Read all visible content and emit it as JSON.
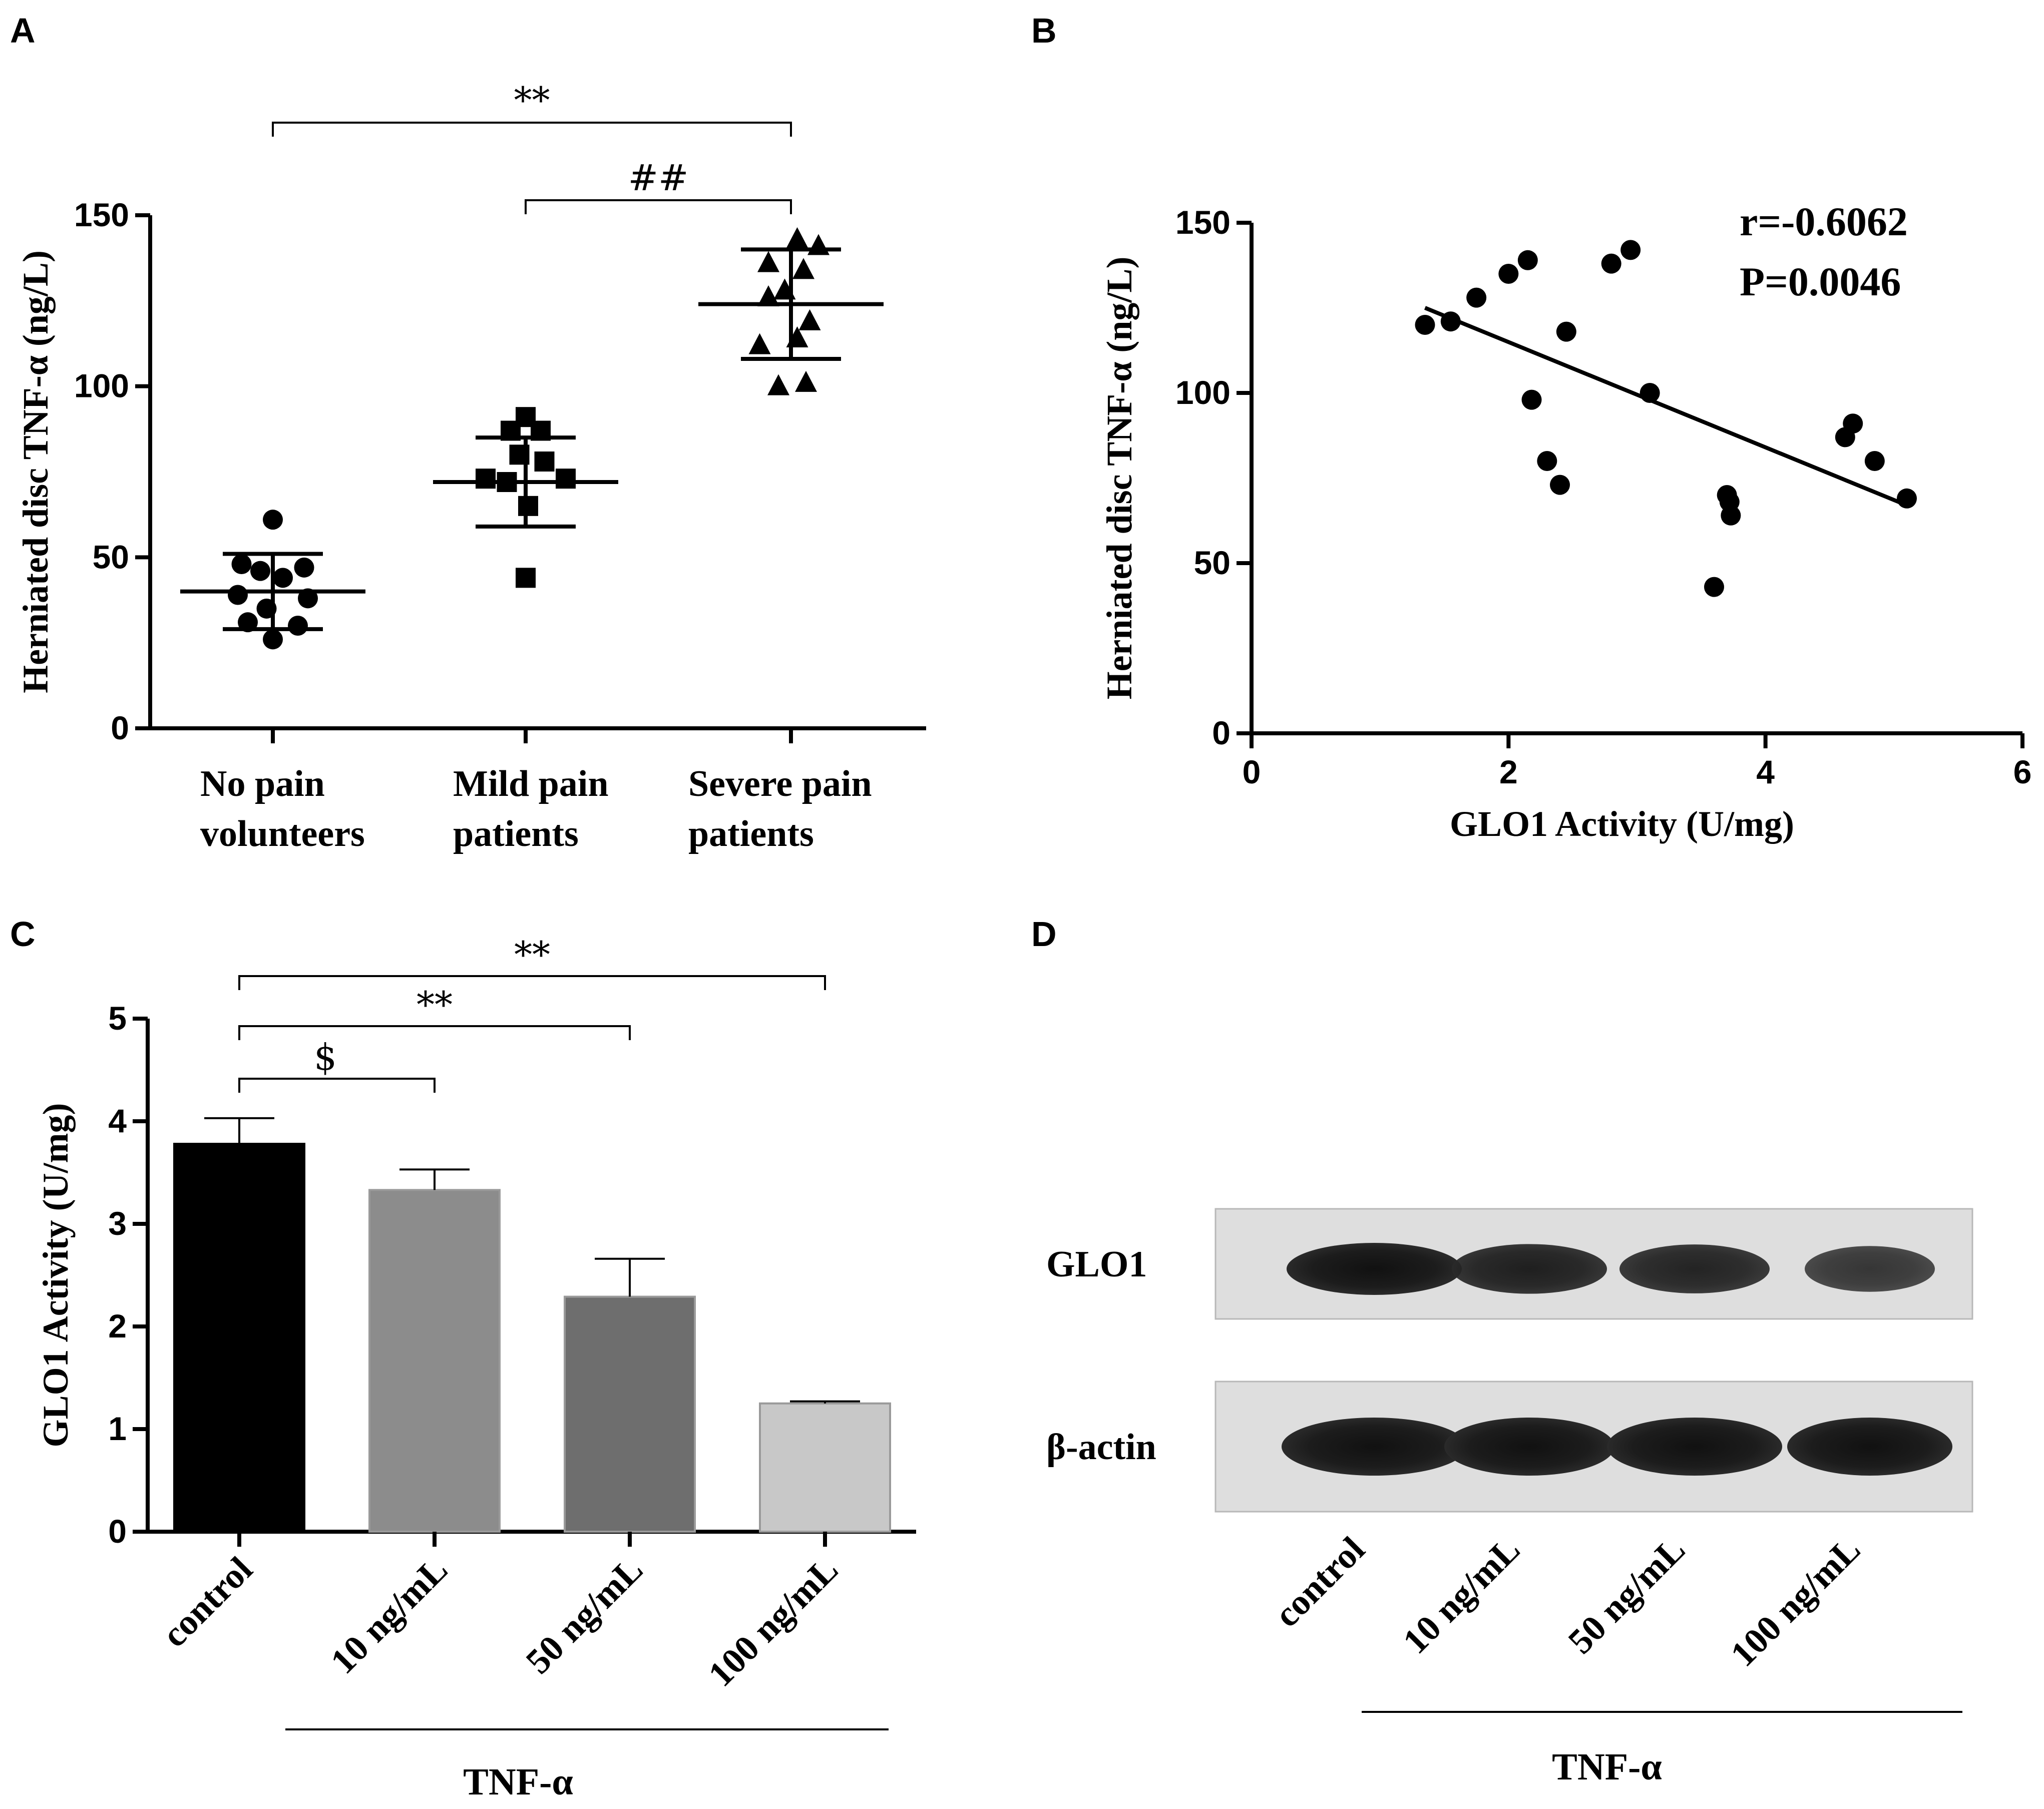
{
  "panels": {
    "A": "A",
    "B": "B",
    "C": "C",
    "D": "D"
  },
  "chart_data": [
    {
      "panel": "A",
      "type": "scatter",
      "ylabel": "Herniated disc TNF-α (ng/L)",
      "ylim": [
        0,
        150
      ],
      "yticks": [
        0,
        50,
        100,
        150
      ],
      "categories": [
        [
          "No pain",
          "volunteers"
        ],
        [
          "Mild pain",
          "patients"
        ],
        [
          "Severe pain",
          "patients"
        ]
      ],
      "groups": [
        {
          "marker": "circle",
          "mean": 40,
          "sd": 11,
          "points": [
            {
              "dx": 0.0,
              "y": 61
            },
            {
              "dx": -0.25,
              "y": 48
            },
            {
              "dx": 0.25,
              "y": 47
            },
            {
              "dx": -0.1,
              "y": 46
            },
            {
              "dx": 0.08,
              "y": 44
            },
            {
              "dx": -0.28,
              "y": 39
            },
            {
              "dx": 0.28,
              "y": 38
            },
            {
              "dx": -0.05,
              "y": 35
            },
            {
              "dx": -0.2,
              "y": 31
            },
            {
              "dx": 0.2,
              "y": 30
            },
            {
              "dx": 0.0,
              "y": 26
            }
          ]
        },
        {
          "marker": "square",
          "mean": 72,
          "sd": 13,
          "points": [
            {
              "dx": 0.0,
              "y": 91
            },
            {
              "dx": -0.12,
              "y": 87
            },
            {
              "dx": 0.12,
              "y": 87
            },
            {
              "dx": -0.05,
              "y": 80
            },
            {
              "dx": 0.15,
              "y": 78
            },
            {
              "dx": -0.32,
              "y": 73
            },
            {
              "dx": 0.32,
              "y": 73
            },
            {
              "dx": -0.15,
              "y": 72
            },
            {
              "dx": 0.02,
              "y": 65
            },
            {
              "dx": 0.0,
              "y": 44
            }
          ]
        },
        {
          "marker": "triangle",
          "mean": 124,
          "sd": 16,
          "points": [
            {
              "dx": 0.05,
              "y": 143
            },
            {
              "dx": 0.22,
              "y": 141
            },
            {
              "dx": -0.18,
              "y": 136
            },
            {
              "dx": 0.1,
              "y": 134
            },
            {
              "dx": -0.05,
              "y": 128
            },
            {
              "dx": -0.18,
              "y": 126
            },
            {
              "dx": 0.15,
              "y": 119
            },
            {
              "dx": -0.25,
              "y": 112
            },
            {
              "dx": 0.05,
              "y": 114
            },
            {
              "dx": -0.1,
              "y": 100
            },
            {
              "dx": 0.12,
              "y": 101
            }
          ]
        }
      ],
      "brackets": [
        {
          "from": 0,
          "to": 2,
          "label": "**"
        },
        {
          "from": 1,
          "to": 2,
          "label": "##"
        }
      ]
    },
    {
      "panel": "B",
      "type": "scatter",
      "xlabel": "GLO1 Activity (U/mg)",
      "ylabel": "Herniated disc TNF-α (ng/L)",
      "xlim": [
        0,
        6
      ],
      "ylim": [
        0,
        150
      ],
      "xticks": [
        0,
        2,
        4,
        6
      ],
      "yticks": [
        0,
        50,
        100,
        150
      ],
      "points": [
        {
          "x": 1.35,
          "y": 120
        },
        {
          "x": 1.55,
          "y": 121
        },
        {
          "x": 1.75,
          "y": 128
        },
        {
          "x": 2.0,
          "y": 135
        },
        {
          "x": 2.15,
          "y": 139
        },
        {
          "x": 2.18,
          "y": 98
        },
        {
          "x": 2.3,
          "y": 80
        },
        {
          "x": 2.4,
          "y": 73
        },
        {
          "x": 2.45,
          "y": 118
        },
        {
          "x": 2.8,
          "y": 138
        },
        {
          "x": 2.95,
          "y": 142
        },
        {
          "x": 3.1,
          "y": 100
        },
        {
          "x": 3.6,
          "y": 43
        },
        {
          "x": 3.7,
          "y": 70
        },
        {
          "x": 3.72,
          "y": 68
        },
        {
          "x": 3.73,
          "y": 64
        },
        {
          "x": 4.62,
          "y": 87
        },
        {
          "x": 4.68,
          "y": 91
        },
        {
          "x": 4.85,
          "y": 80
        },
        {
          "x": 5.1,
          "y": 69
        }
      ],
      "fit_line": {
        "x": [
          1.35,
          5.1
        ],
        "y": [
          125,
          67
        ]
      },
      "annotations": [
        "r=-0.6062",
        "P=0.0046"
      ]
    },
    {
      "panel": "C",
      "type": "bar",
      "ylabel": "GLO1 Activity (U/mg)",
      "ylim": [
        0,
        5
      ],
      "yticks": [
        0,
        1,
        2,
        3,
        4,
        5
      ],
      "categories": [
        "control",
        "10 ng/mL",
        "50 ng/mL",
        "100 ng/mL"
      ],
      "values": [
        3.78,
        3.33,
        2.29,
        1.25
      ],
      "errors": [
        0.25,
        0.2,
        0.37,
        0.02
      ],
      "colors": [
        "#000000",
        "#8c8c8c",
        "#6e6e6e",
        "#c8c8c8"
      ],
      "group_label": "TNF-α",
      "brackets": [
        {
          "from": 0,
          "to": 1,
          "label": "$"
        },
        {
          "from": 0,
          "to": 2,
          "label": "**"
        },
        {
          "from": 0,
          "to": 3,
          "label": "**"
        }
      ]
    }
  ],
  "blot": {
    "rows": [
      {
        "label": "GLO1",
        "intensity": [
          1.0,
          0.85,
          0.8,
          0.6
        ]
      },
      {
        "label": "β-actin",
        "intensity": [
          1.0,
          1.0,
          1.0,
          1.0
        ]
      }
    ],
    "lanes": [
      "control",
      "10 ng/mL",
      "50 ng/mL",
      "100 ng/mL"
    ],
    "group_label": "TNF-α"
  }
}
